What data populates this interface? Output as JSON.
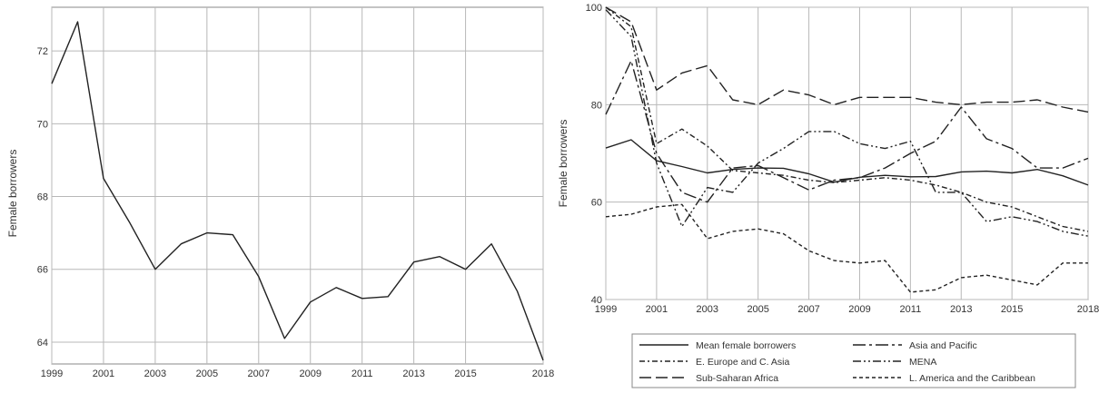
{
  "chart_data": [
    {
      "type": "line",
      "title": "",
      "xlabel": "",
      "ylabel": "Female borrowers",
      "xlim": [
        1999,
        2018
      ],
      "ylim": [
        63.4,
        73.2
      ],
      "x_ticks": [
        "1999",
        "2001",
        "2003",
        "2005",
        "2007",
        "2009",
        "2011",
        "2013",
        "2015",
        "2018"
      ],
      "y_ticks": [
        "64",
        "66",
        "68",
        "70",
        "72"
      ],
      "grid": true,
      "series": [
        {
          "name": "",
          "x": [
            1999,
            2000,
            2001,
            2002,
            2003,
            2004,
            2005,
            2006,
            2007,
            2008,
            2009,
            2010,
            2011,
            2012,
            2013,
            2014,
            2015,
            2016,
            2017,
            2018
          ],
          "values": [
            71.1,
            72.8,
            68.5,
            67.3,
            66.0,
            66.7,
            67.0,
            66.95,
            65.8,
            64.1,
            65.1,
            65.5,
            65.2,
            65.25,
            66.2,
            66.35,
            66.0,
            66.7,
            65.4,
            63.5
          ]
        }
      ]
    },
    {
      "type": "line",
      "title": "",
      "xlabel": "",
      "ylabel": "Female borrowers",
      "xlim": [
        1999,
        2018
      ],
      "ylim": [
        40,
        100
      ],
      "x_ticks": [
        "1999",
        "2001",
        "2003",
        "2005",
        "2007",
        "2009",
        "2011",
        "2013",
        "2015",
        "2018"
      ],
      "y_ticks": [
        "40",
        "60",
        "80",
        "100"
      ],
      "grid": true,
      "legend_position": "bottom",
      "x": [
        1999,
        2000,
        2001,
        2002,
        2003,
        2004,
        2005,
        2006,
        2007,
        2008,
        2009,
        2010,
        2011,
        2012,
        2013,
        2014,
        2015,
        2016,
        2017,
        2018
      ],
      "series": [
        {
          "name": "Mean female borrowers",
          "values": [
            71.1,
            72.8,
            68.5,
            67.3,
            66.0,
            66.7,
            67.0,
            66.95,
            65.8,
            64.1,
            65.1,
            65.5,
            65.2,
            65.25,
            66.2,
            66.35,
            66.0,
            66.7,
            65.4,
            63.5
          ]
        },
        {
          "name": "Asia and Pacific",
          "values": [
            78,
            89,
            70,
            62,
            60,
            67,
            67.5,
            65,
            62.5,
            64.5,
            65,
            67,
            70,
            72.5,
            79.5,
            73,
            71,
            67,
            67,
            69
          ]
        },
        {
          "name": "E. Europe and C. Asia",
          "values": [
            100,
            96,
            72,
            75,
            71.5,
            66.5,
            66,
            65.5,
            64.5,
            64,
            64.5,
            65,
            64.5,
            63.5,
            62,
            60,
            59,
            57,
            55,
            54
          ]
        },
        {
          "name": "MENA",
          "values": [
            99.5,
            94,
            68,
            55,
            63,
            62,
            68,
            71,
            74.5,
            74.5,
            72,
            71,
            72.5,
            62,
            62,
            56,
            57,
            56,
            54,
            53
          ]
        },
        {
          "name": "Sub-Saharan Africa",
          "values": [
            100,
            97,
            83,
            86.5,
            88,
            81,
            80,
            83,
            82,
            80,
            81.5,
            81.5,
            81.5,
            80.5,
            80,
            80.5,
            80.5,
            81,
            79.5,
            78.5
          ]
        },
        {
          "name": "L. America and the Caribbean",
          "values": [
            57,
            57.5,
            59,
            59.5,
            52.5,
            54,
            54.5,
            53.5,
            50,
            48,
            47.5,
            48,
            41.5,
            42,
            44.5,
            45,
            44,
            43,
            47.5,
            47.5
          ]
        }
      ]
    }
  ],
  "colors": {
    "line": "#222222",
    "grid": "#b8b8b8",
    "frame": "#888888",
    "text": "#333333"
  }
}
